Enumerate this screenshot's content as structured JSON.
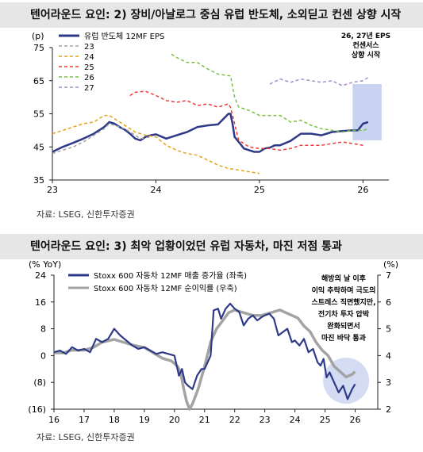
{
  "panels": [
    {
      "title": "텐어라운드 요인: 2) 장비/아날로그 중심 유럽 반도체, 소외딛고 컨센 상향 시작",
      "source": "자료: LSEG, 신한투자증권"
    },
    {
      "title": "텐어라운드 요인: 3) 최악 업황이었던 유럽 자동차, 마진 저점 통과",
      "source": "자료: LSEG, 신한투자증권"
    }
  ],
  "colors": {
    "navy": "#2e3a87",
    "gray": "#a3a3a3",
    "green": "#7ac142",
    "orange": "#e3a21a",
    "red": "#ee3b3b",
    "purple": "#a58fcb",
    "highlight": "#c9d3f1",
    "darkgray": "#a9a9a9"
  },
  "chart_data": [
    {
      "type": "line",
      "y_unit": "(p)",
      "ylim": [
        35,
        75
      ],
      "yticks": [
        35,
        45,
        55,
        65,
        75
      ],
      "xlim": [
        2023.0,
        2026.25
      ],
      "xticks": [
        {
          "v": 2023,
          "label": "23"
        },
        {
          "v": 2024,
          "label": "24"
        },
        {
          "v": 2025,
          "label": "25"
        },
        {
          "v": 2026,
          "label": "26"
        }
      ],
      "grid": false,
      "legend": "top-left",
      "annotation": [
        "26, 27년 EPS",
        "컨센서스",
        "상향 시작"
      ],
      "highlight_x": [
        2025.9,
        2026.18
      ],
      "series": [
        {
          "name": "유럽 반도체 12MF EPS",
          "color": "navy",
          "dash": false,
          "width": 2.5,
          "x": [
            2023.0,
            2023.1,
            2023.2,
            2023.3,
            2023.4,
            2023.5,
            2023.55,
            2023.6,
            2023.65,
            2023.7,
            2023.75,
            2023.8,
            2023.85,
            2023.9,
            2023.95,
            2024.0,
            2024.1,
            2024.2,
            2024.3,
            2024.4,
            2024.5,
            2024.6,
            2024.7,
            2024.72,
            2024.74,
            2024.76,
            2024.8,
            2024.85,
            2024.9,
            2024.95,
            2025.0,
            2025.05,
            2025.1,
            2025.15,
            2025.2,
            2025.3,
            2025.4,
            2025.5,
            2025.6,
            2025.7,
            2025.8,
            2025.9,
            2025.95,
            2026.0,
            2026.05
          ],
          "y": [
            43.5,
            45,
            46.2,
            47.5,
            49,
            51,
            52.5,
            52,
            51,
            50.2,
            49,
            47.5,
            47,
            48,
            48.5,
            48.8,
            47.5,
            48.5,
            49.5,
            51,
            51.5,
            51.8,
            55,
            55,
            52,
            48,
            46.5,
            44.5,
            44,
            43.5,
            43.5,
            44.5,
            44.8,
            45.5,
            45.5,
            46.8,
            49,
            49,
            48.5,
            49.5,
            49.8,
            50,
            50,
            52,
            52.5
          ]
        },
        {
          "name": "23",
          "color": "gray",
          "dash": true,
          "width": 1.5,
          "x": [
            2023.0,
            2023.1,
            2023.2,
            2023.3,
            2023.4,
            2023.5,
            2023.55,
            2023.6,
            2023.7,
            2023.8,
            2023.85,
            2023.9,
            2023.95
          ],
          "y": [
            43,
            44,
            45,
            46.5,
            48.5,
            50.5,
            52,
            51.5,
            50.5,
            48.5,
            47.5,
            47.8,
            48
          ]
        },
        {
          "name": "24",
          "color": "orange",
          "dash": true,
          "width": 1.5,
          "x": [
            2023.0,
            2023.1,
            2023.2,
            2023.3,
            2023.4,
            2023.5,
            2023.55,
            2023.6,
            2023.7,
            2023.8,
            2023.9,
            2024.0,
            2024.1,
            2024.2,
            2024.3,
            2024.4,
            2024.5,
            2024.6,
            2024.7,
            2024.8,
            2024.9,
            2025.0
          ],
          "y": [
            49,
            50,
            51,
            52,
            52.5,
            54.5,
            54.5,
            53.5,
            51.5,
            49.5,
            48.5,
            48,
            45.5,
            44,
            43,
            42.5,
            41,
            39.5,
            38.5,
            38,
            37.5,
            37
          ]
        },
        {
          "name": "25",
          "color": "red",
          "dash": true,
          "width": 1.5,
          "x": [
            2023.75,
            2023.8,
            2023.9,
            2024.0,
            2024.1,
            2024.2,
            2024.3,
            2024.4,
            2024.5,
            2024.6,
            2024.7,
            2024.72,
            2024.76,
            2024.8,
            2024.85,
            2024.9,
            2025.0,
            2025.1,
            2025.2,
            2025.3,
            2025.4,
            2025.5,
            2025.6,
            2025.7,
            2025.8,
            2025.9,
            2026.0
          ],
          "y": [
            60.5,
            61.5,
            61.8,
            60.5,
            59,
            58.5,
            59,
            57.5,
            58,
            57,
            58,
            57,
            52,
            47,
            46,
            45,
            44.5,
            44.5,
            44,
            44.5,
            45.5,
            45.5,
            45.5,
            46,
            46.5,
            46,
            45.5
          ]
        },
        {
          "name": "26",
          "color": "green",
          "dash": true,
          "width": 1.5,
          "x": [
            2024.15,
            2024.2,
            2024.3,
            2024.4,
            2024.5,
            2024.6,
            2024.7,
            2024.72,
            2024.76,
            2024.8,
            2024.9,
            2025.0,
            2025.1,
            2025.2,
            2025.3,
            2025.4,
            2025.5,
            2025.6,
            2025.7,
            2025.8,
            2025.9,
            2026.0,
            2026.05
          ],
          "y": [
            73,
            72,
            70.5,
            70.5,
            68.5,
            67,
            66.5,
            66.5,
            60,
            57,
            56,
            54.5,
            54.5,
            54.5,
            52.5,
            53,
            51.5,
            50.5,
            50,
            49.5,
            50,
            50,
            50.5
          ]
        },
        {
          "name": "27",
          "color": "purple",
          "dash": true,
          "width": 1.5,
          "x": [
            2025.1,
            2025.2,
            2025.3,
            2025.4,
            2025.5,
            2025.6,
            2025.7,
            2025.8,
            2025.9,
            2026.0,
            2026.05
          ],
          "y": [
            64,
            65.5,
            64.5,
            65.5,
            65,
            64.5,
            65,
            63.5,
            64.5,
            65,
            66
          ]
        }
      ]
    },
    {
      "type": "line",
      "y_unit_left": "(% YoY)",
      "y_unit_right": "(%)",
      "ylim": [
        -16,
        24
      ],
      "yticks": [
        {
          "v": 24,
          "label": "24"
        },
        {
          "v": 16,
          "label": "16"
        },
        {
          "v": 8,
          "label": "8"
        },
        {
          "v": 0,
          "label": "0"
        },
        {
          "v": -8,
          "label": "(8)"
        },
        {
          "v": -16,
          "label": "(16)"
        }
      ],
      "ylim_right": [
        2,
        7
      ],
      "yticks_right": [
        2,
        3,
        4,
        5,
        6,
        7
      ],
      "xlim": [
        2016,
        2026.75
      ],
      "xticks": [
        {
          "v": 2016,
          "label": "16"
        },
        {
          "v": 2017,
          "label": "17"
        },
        {
          "v": 2018,
          "label": "18"
        },
        {
          "v": 2019,
          "label": "19"
        },
        {
          "v": 2020,
          "label": "20"
        },
        {
          "v": 2021,
          "label": "21"
        },
        {
          "v": 2022,
          "label": "22"
        },
        {
          "v": 2023,
          "label": "23"
        },
        {
          "v": 2024,
          "label": "24"
        },
        {
          "v": 2025,
          "label": "25"
        },
        {
          "v": 2026,
          "label": "26"
        }
      ],
      "grid": false,
      "legend": "top-left",
      "annotation": [
        "해방의 날 이후",
        "이익 추락하며 극도의",
        "스트레스 직면했지만,",
        "전기차 투자 압박",
        "완화되면서",
        "마진 바닥 통과"
      ],
      "highlight_circle": {
        "x": 2025.7,
        "y": -7.5
      },
      "series": [
        {
          "name": "Stoxx 600 자동차 12MF 매출 증가율 (좌축)",
          "axis": "left",
          "color": "navy",
          "width": 2.2,
          "x": [
            2016.0,
            2016.2,
            2016.4,
            2016.6,
            2016.8,
            2017.0,
            2017.2,
            2017.4,
            2017.6,
            2017.8,
            2018.0,
            2018.2,
            2018.4,
            2018.6,
            2018.8,
            2019.0,
            2019.2,
            2019.4,
            2019.6,
            2019.8,
            2020.0,
            2020.15,
            2020.25,
            2020.35,
            2020.45,
            2020.6,
            2020.75,
            2020.9,
            2021.0,
            2021.1,
            2021.2,
            2021.3,
            2021.45,
            2021.55,
            2021.7,
            2021.85,
            2022.0,
            2022.15,
            2022.3,
            2022.45,
            2022.6,
            2022.75,
            2022.9,
            2023.0,
            2023.15,
            2023.3,
            2023.45,
            2023.6,
            2023.75,
            2023.9,
            2024.0,
            2024.15,
            2024.3,
            2024.45,
            2024.6,
            2024.75,
            2024.85,
            2024.95,
            2025.05,
            2025.15,
            2025.3,
            2025.45,
            2025.6,
            2025.75,
            2025.9,
            2026.0
          ],
          "y": [
            1,
            1.5,
            0.5,
            2.5,
            1.5,
            2,
            1,
            5,
            4,
            5,
            8,
            6,
            4.5,
            3,
            2,
            2.5,
            1.5,
            0.5,
            1,
            0.5,
            0,
            -6,
            -4,
            -8,
            -9,
            -10,
            -6,
            -4,
            -4,
            -2,
            0,
            13.5,
            14,
            11,
            14,
            15.5,
            14,
            13,
            9,
            11,
            12,
            10.5,
            11.5,
            12,
            12.5,
            11,
            6,
            7,
            8,
            4,
            4.5,
            3,
            5,
            1,
            2,
            -2,
            -3,
            -1,
            -6.5,
            -5,
            -8,
            -11,
            -9,
            -13,
            -10,
            -8.5
          ]
        },
        {
          "name": "Stoxx 600 자동차 12MF 순이익률 (우축)",
          "axis": "right",
          "color": "gray",
          "width": 3.5,
          "x": [
            2016.0,
            2016.3,
            2016.6,
            2017.0,
            2017.3,
            2017.6,
            2018.0,
            2018.3,
            2018.6,
            2019.0,
            2019.3,
            2019.6,
            2019.9,
            2020.1,
            2020.2,
            2020.3,
            2020.4,
            2020.5,
            2020.6,
            2020.8,
            2021.0,
            2021.2,
            2021.4,
            2021.6,
            2021.8,
            2022.0,
            2022.3,
            2022.6,
            2022.9,
            2023.2,
            2023.5,
            2023.7,
            2023.9,
            2024.1,
            2024.3,
            2024.5,
            2024.7,
            2024.9,
            2025.1,
            2025.3,
            2025.5,
            2025.7,
            2025.9,
            2026.0
          ],
          "y": [
            4.1,
            4.1,
            4.2,
            4.2,
            4.3,
            4.5,
            4.6,
            4.5,
            4.4,
            4.3,
            4.1,
            3.9,
            3.8,
            3.6,
            3.4,
            2.8,
            2.3,
            2.0,
            2.2,
            2.8,
            3.6,
            4.5,
            5.0,
            5.3,
            5.6,
            5.7,
            5.6,
            5.5,
            5.5,
            5.6,
            5.7,
            5.6,
            5.5,
            5.4,
            5.1,
            4.9,
            4.5,
            4.2,
            4.0,
            3.6,
            3.4,
            3.2,
            3.3,
            3.4
          ]
        }
      ]
    }
  ]
}
